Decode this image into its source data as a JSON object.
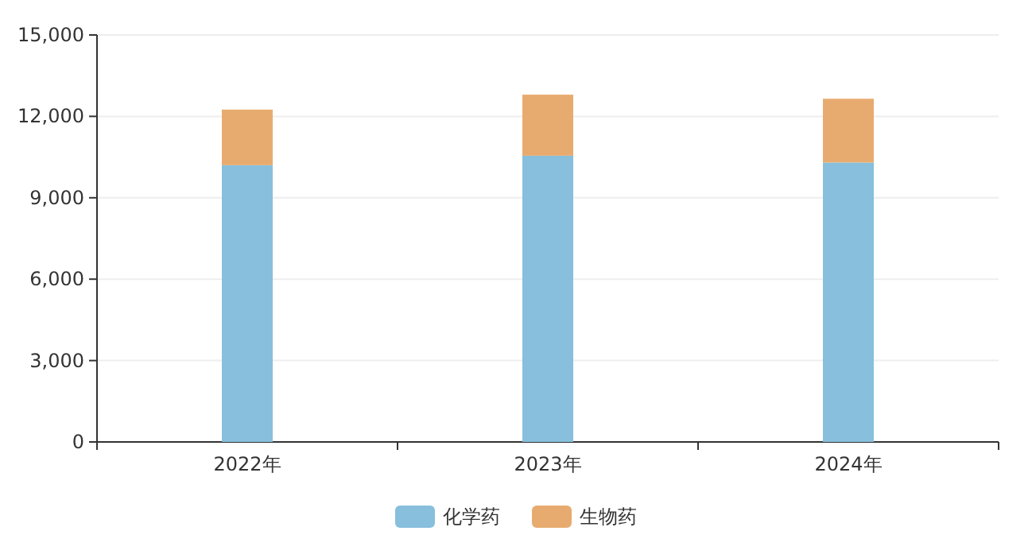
{
  "chart_data": {
    "type": "bar",
    "stacked": true,
    "categories": [
      "2022年",
      "2023年",
      "2024年"
    ],
    "series": [
      {
        "name": "化学药",
        "color": "#87bfdd",
        "values": [
          10200,
          10550,
          10300
        ]
      },
      {
        "name": "生物药",
        "color": "#e8ab6f",
        "values": [
          2050,
          2250,
          2350
        ]
      }
    ],
    "ylim": [
      0,
      15000
    ],
    "yticks": [
      {
        "value": 0,
        "label": "0"
      },
      {
        "value": 3000,
        "label": "3,000"
      },
      {
        "value": 6000,
        "label": "6,000"
      },
      {
        "value": 9000,
        "label": "9,000"
      },
      {
        "value": 12000,
        "label": "12,000"
      },
      {
        "value": 15000,
        "label": "15,000"
      }
    ],
    "grid": "y",
    "legend": "bottom"
  }
}
